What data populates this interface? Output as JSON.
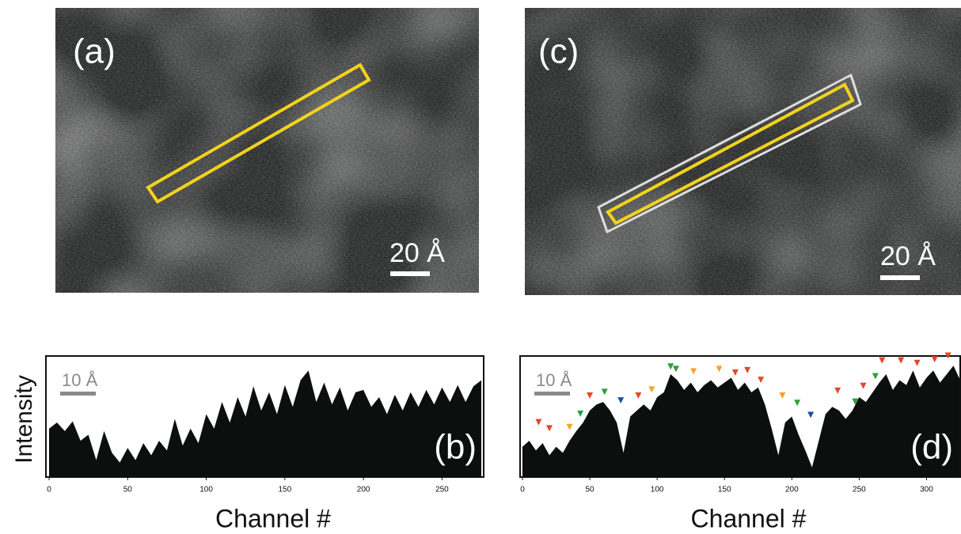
{
  "panels": [
    {
      "label": "(a)",
      "scale_label": "20 Å"
    },
    {
      "label": "(c)",
      "scale_label": "20 Å"
    }
  ],
  "y_axis_label": "Intensity",
  "chart_data": [
    {
      "type": "area",
      "label": "(b)",
      "scale_label": "10 Å",
      "xlabel": "Channel #",
      "color": "#0b0f0e",
      "xlim": [
        0,
        277
      ],
      "ylim": [
        0,
        100
      ],
      "xticks": [
        0,
        50,
        100,
        150,
        200,
        250
      ],
      "x": [
        0,
        5,
        10,
        15,
        20,
        25,
        30,
        35,
        40,
        45,
        50,
        55,
        60,
        65,
        70,
        75,
        80,
        85,
        90,
        95,
        100,
        105,
        110,
        115,
        120,
        125,
        130,
        135,
        140,
        145,
        150,
        155,
        160,
        165,
        170,
        175,
        180,
        185,
        190,
        195,
        200,
        205,
        210,
        215,
        220,
        225,
        230,
        235,
        240,
        245,
        250,
        255,
        260,
        265,
        270,
        275
      ],
      "values": [
        40,
        45,
        38,
        46,
        30,
        35,
        14,
        38,
        20,
        12,
        24,
        14,
        28,
        18,
        30,
        22,
        48,
        26,
        40,
        28,
        52,
        40,
        62,
        45,
        66,
        50,
        75,
        55,
        70,
        52,
        76,
        58,
        80,
        88,
        62,
        78,
        60,
        74,
        55,
        70,
        72,
        58,
        66,
        52,
        68,
        55,
        70,
        58,
        72,
        60,
        74,
        62,
        76,
        62,
        75,
        80
      ],
      "markers": []
    },
    {
      "type": "area",
      "label": "(d)",
      "scale_label": "10 Å",
      "xlabel": "Channel #",
      "color": "#0b0f0e",
      "xlim": [
        0,
        325
      ],
      "ylim": [
        0,
        100
      ],
      "xticks": [
        0,
        50,
        100,
        150,
        200,
        250,
        300
      ],
      "x": [
        0,
        5,
        10,
        15,
        20,
        25,
        30,
        35,
        40,
        45,
        50,
        55,
        60,
        65,
        70,
        75,
        80,
        85,
        90,
        95,
        100,
        105,
        110,
        115,
        120,
        125,
        130,
        135,
        140,
        145,
        150,
        155,
        160,
        165,
        170,
        175,
        180,
        185,
        190,
        195,
        200,
        205,
        210,
        215,
        220,
        225,
        230,
        235,
        240,
        245,
        250,
        255,
        260,
        265,
        270,
        275,
        280,
        285,
        290,
        295,
        300,
        305,
        310,
        315,
        320,
        325
      ],
      "values": [
        25,
        30,
        22,
        28,
        18,
        25,
        20,
        30,
        38,
        45,
        55,
        60,
        62,
        55,
        45,
        20,
        50,
        55,
        60,
        55,
        66,
        70,
        85,
        80,
        72,
        78,
        70,
        76,
        80,
        74,
        78,
        82,
        72,
        78,
        70,
        74,
        60,
        40,
        18,
        45,
        50,
        35,
        22,
        8,
        30,
        52,
        58,
        55,
        48,
        55,
        66,
        62,
        70,
        78,
        85,
        72,
        80,
        76,
        88,
        74,
        82,
        88,
        78,
        85,
        92,
        80
      ],
      "markers": [
        {
          "x": 12,
          "y": 44,
          "color": "#e8452a"
        },
        {
          "x": 20,
          "y": 39,
          "color": "#e8452a"
        },
        {
          "x": 35,
          "y": 40,
          "color": "#f5a623"
        },
        {
          "x": 43,
          "y": 51,
          "color": "#2e9e3c"
        },
        {
          "x": 50,
          "y": 66,
          "color": "#e8452a"
        },
        {
          "x": 61,
          "y": 69,
          "color": "#2e9e3c"
        },
        {
          "x": 73,
          "y": 62,
          "color": "#1f4fa0"
        },
        {
          "x": 86,
          "y": 66,
          "color": "#e8452a"
        },
        {
          "x": 96,
          "y": 71,
          "color": "#f5a623"
        },
        {
          "x": 110,
          "y": 90,
          "color": "#2e9e3c"
        },
        {
          "x": 114,
          "y": 88,
          "color": "#2e9e3c"
        },
        {
          "x": 127,
          "y": 86,
          "color": "#f5a623"
        },
        {
          "x": 146,
          "y": 88,
          "color": "#f5a623"
        },
        {
          "x": 158,
          "y": 85,
          "color": "#e8452a"
        },
        {
          "x": 167,
          "y": 87,
          "color": "#e8452a"
        },
        {
          "x": 177,
          "y": 79,
          "color": "#e8452a"
        },
        {
          "x": 193,
          "y": 66,
          "color": "#f5a623"
        },
        {
          "x": 204,
          "y": 60,
          "color": "#2e9e3c"
        },
        {
          "x": 214,
          "y": 50,
          "color": "#1f4fa0"
        },
        {
          "x": 234,
          "y": 70,
          "color": "#e8452a"
        },
        {
          "x": 247,
          "y": 61,
          "color": "#2e9e3c"
        },
        {
          "x": 253,
          "y": 74,
          "color": "#e8452a"
        },
        {
          "x": 262,
          "y": 82,
          "color": "#2e9e3c"
        },
        {
          "x": 267,
          "y": 95,
          "color": "#e8452a"
        },
        {
          "x": 281,
          "y": 95,
          "color": "#e8452a"
        },
        {
          "x": 293,
          "y": 93,
          "color": "#e8452a"
        },
        {
          "x": 306,
          "y": 96,
          "color": "#e8452a"
        },
        {
          "x": 316,
          "y": 99,
          "color": "#e8452a"
        }
      ]
    }
  ]
}
